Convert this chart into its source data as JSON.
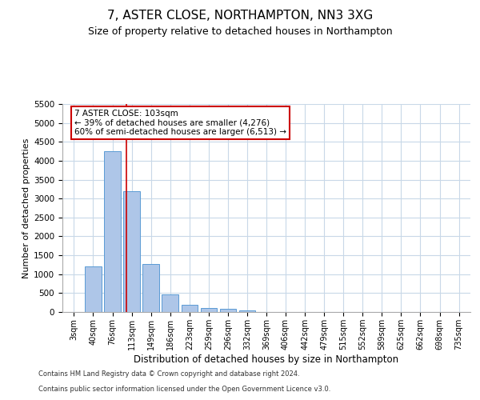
{
  "title1": "7, ASTER CLOSE, NORTHAMPTON, NN3 3XG",
  "title2": "Size of property relative to detached houses in Northampton",
  "xlabel": "Distribution of detached houses by size in Northampton",
  "ylabel": "Number of detached properties",
  "categories": [
    "3sqm",
    "40sqm",
    "76sqm",
    "113sqm",
    "149sqm",
    "186sqm",
    "223sqm",
    "259sqm",
    "296sqm",
    "332sqm",
    "369sqm",
    "406sqm",
    "442sqm",
    "479sqm",
    "515sqm",
    "552sqm",
    "589sqm",
    "625sqm",
    "662sqm",
    "698sqm",
    "735sqm"
  ],
  "values": [
    0,
    1200,
    4250,
    3200,
    1275,
    475,
    200,
    100,
    75,
    50,
    0,
    0,
    0,
    0,
    0,
    0,
    0,
    0,
    0,
    0,
    0
  ],
  "bar_color": "#aec6e8",
  "bar_edge_color": "#5b9bd5",
  "ylim": [
    0,
    5500
  ],
  "yticks": [
    0,
    500,
    1000,
    1500,
    2000,
    2500,
    3000,
    3500,
    4000,
    4500,
    5000,
    5500
  ],
  "annotation_text": "7 ASTER CLOSE: 103sqm\n← 39% of detached houses are smaller (4,276)\n60% of semi-detached houses are larger (6,513) →",
  "annotation_box_color": "#ffffff",
  "annotation_box_edge": "#cc0000",
  "property_line_color": "#cc0000",
  "footer1": "Contains HM Land Registry data © Crown copyright and database right 2024.",
  "footer2": "Contains public sector information licensed under the Open Government Licence v3.0.",
  "bg_color": "#ffffff",
  "grid_color": "#c8d8e8",
  "title1_fontsize": 11,
  "title2_fontsize": 9
}
